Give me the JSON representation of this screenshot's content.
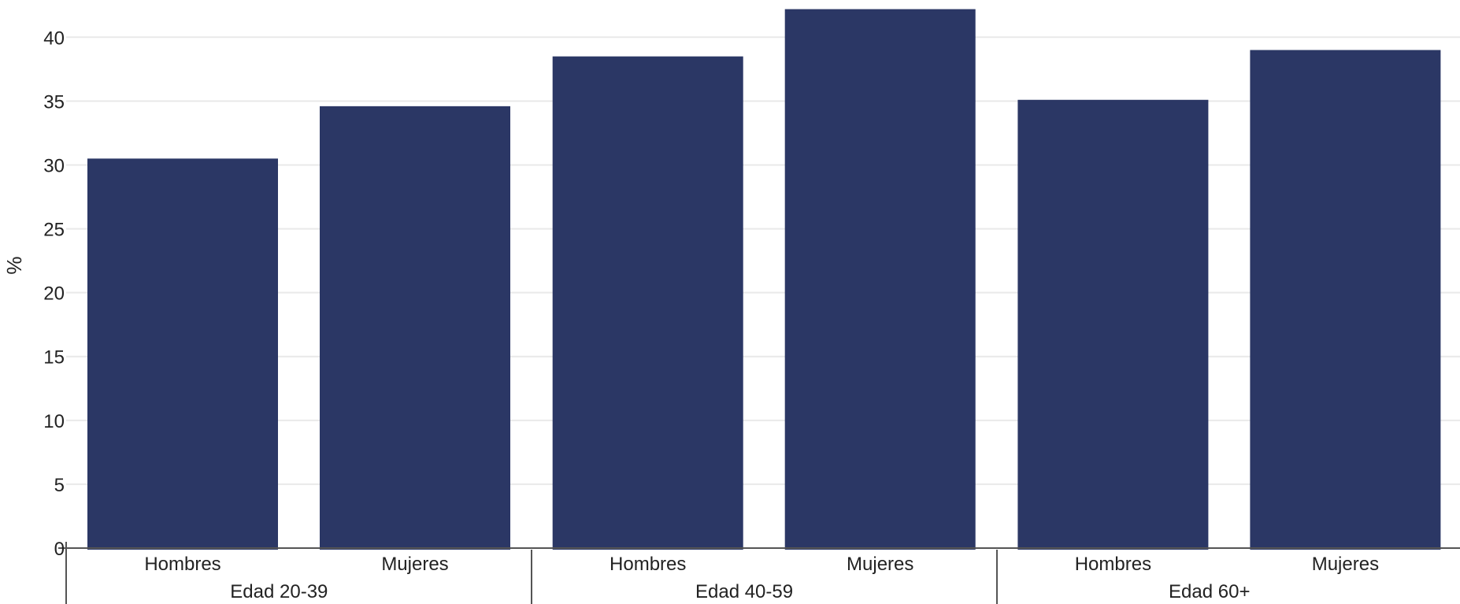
{
  "chart_data": {
    "type": "bar",
    "title": "",
    "xlabel": "",
    "ylabel": "%",
    "ylim": [
      0,
      42.3
    ],
    "yticks": [
      0,
      5,
      10,
      15,
      20,
      25,
      30,
      35,
      40
    ],
    "grid": true,
    "legend": "none",
    "bar_color": "#2b3765",
    "groups": [
      {
        "label": "Edad 20-39",
        "categories": [
          "Hombres",
          "Mujeres"
        ],
        "values": [
          30.5,
          34.6
        ]
      },
      {
        "label": "Edad 40-59",
        "categories": [
          "Hombres",
          "Mujeres"
        ],
        "values": [
          38.5,
          42.2
        ]
      },
      {
        "label": "Edad 60+",
        "categories": [
          "Hombres",
          "Mujeres"
        ],
        "values": [
          35.1,
          39.0
        ]
      }
    ]
  }
}
